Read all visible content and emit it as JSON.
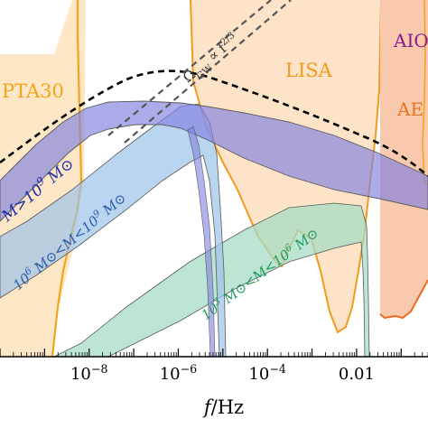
{
  "chart_data": {
    "type": "area",
    "xlabel": "f/Hz",
    "xscale": "log",
    "xlim": [
      1e-10,
      0.4
    ],
    "ylim": [
      0,
      1
    ],
    "tick_labels": [
      {
        "x": 1e-08,
        "text": "10",
        "exp": "−8"
      },
      {
        "x": 1e-06,
        "text": "10",
        "exp": "−6"
      },
      {
        "x": 0.0001,
        "text": "10",
        "exp": "−4"
      },
      {
        "x": 0.01,
        "text": "0.01",
        "exp": ""
      }
    ],
    "region_labels": {
      "pta": "PTA30",
      "lisa": "LISA",
      "aion": "AIO",
      "aedge": "AE",
      "omega": "Ω_GW ∝ f^{2/3}"
    },
    "band_labels": {
      "heavy": "M>10^9 M⊙",
      "mid": "10^6 M⊙<M<10^9 M⊙",
      "light": "10^3 M⊙<M<10^6 M⊙"
    },
    "colors": {
      "pta_fill": "#fde7c6",
      "pta_line": "#f2a51a",
      "lisa_fill": "#fde4c8",
      "lisa_line": "#f29a1e",
      "aedge_fill": "#f8c9ad",
      "aedge_line": "#ea6a1f",
      "aion_text": "#8b1a8f",
      "aedge_text": "#e8731e",
      "heavy_fill": "#7f7fe0",
      "heavy_text": "#1a2fa8",
      "mid_fill": "#9cc3ea",
      "mid_text": "#2a5aa8",
      "light_fill": "#a6dcc4",
      "light_text": "#1e9a5a",
      "band_edge": "#5a5a5a",
      "dashed_black": "#000000",
      "dashed_gray": "#555555"
    }
  }
}
